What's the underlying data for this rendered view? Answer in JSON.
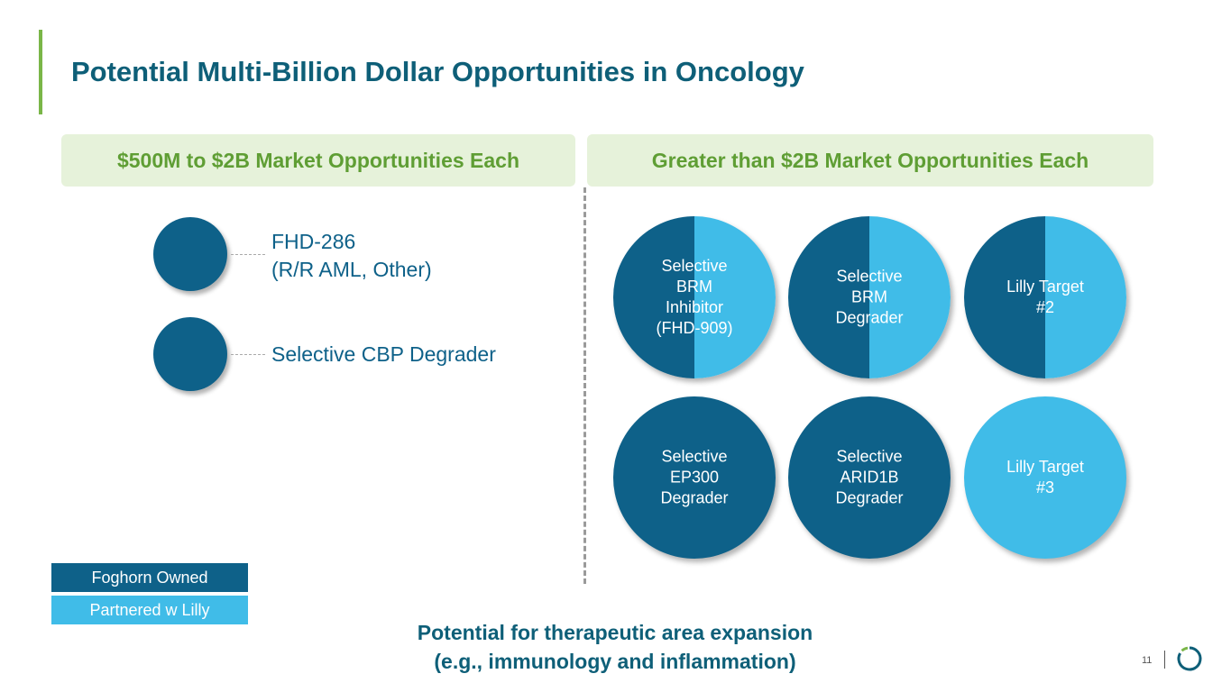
{
  "title": "Potential Multi-Billion Dollar Opportunities in Oncology",
  "colors": {
    "accent_green": "#7ab648",
    "foghorn_owned": "#0e6189",
    "partnered_lilly": "#40bce8",
    "title_blue": "#0e5f78"
  },
  "left_section": {
    "header": "$500M to $2B Market Opportunities Each",
    "items": [
      {
        "label": "FHD-286\n(R/R AML, Other)",
        "ownership": "Foghorn Owned"
      },
      {
        "label": "Selective CBP Degrader",
        "ownership": "Foghorn Owned"
      }
    ]
  },
  "right_section": {
    "header": "Greater than $2B Market Opportunities Each",
    "circles": [
      {
        "label": "Selective\nBRM\nInhibitor\n(FHD-909)",
        "ownership": "split"
      },
      {
        "label": "Selective\nBRM\nDegrader",
        "ownership": "split"
      },
      {
        "label": "Lilly Target\n#2",
        "ownership": "split"
      },
      {
        "label": "Selective\nEP300\nDegrader",
        "ownership": "Foghorn Owned"
      },
      {
        "label": "Selective\nARID1B\nDegrader",
        "ownership": "Foghorn Owned"
      },
      {
        "label": "Lilly Target\n#3",
        "ownership": "Partnered w Lilly"
      }
    ]
  },
  "legend": {
    "owned": "Foghorn Owned",
    "partnered": "Partnered w Lilly"
  },
  "bottom_note": "Potential for therapeutic area expansion\n(e.g., immunology and inflammation)",
  "page_number": "11"
}
